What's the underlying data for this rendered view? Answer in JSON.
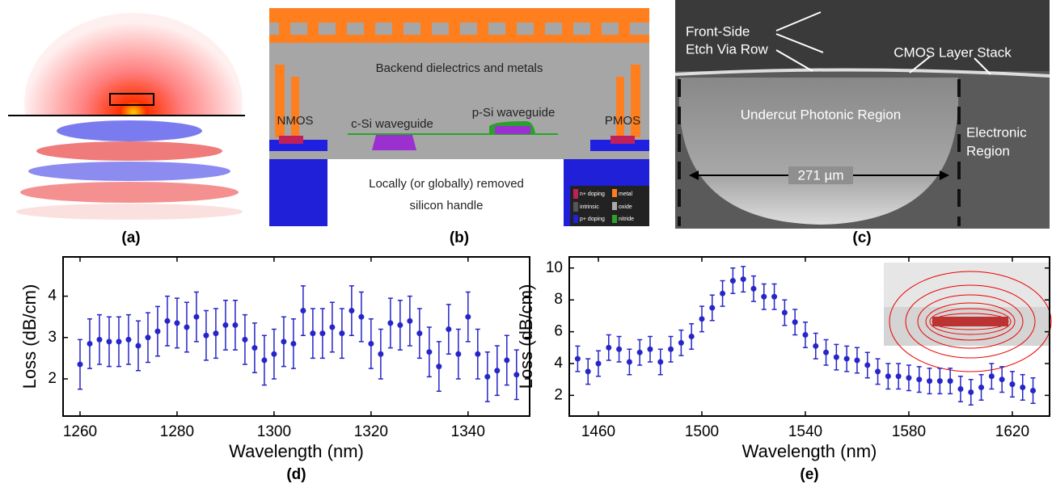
{
  "panels": {
    "a": {
      "label": "(a)"
    },
    "b": {
      "label": "(b)",
      "backend": "Backend dielectrics and metals",
      "nmos": "NMOS",
      "pmos": "PMOS",
      "csi": "c-Si waveguide",
      "psi": "p-Si waveguide",
      "handle": [
        "Locally (or globally) removed",
        "silicon handle"
      ],
      "legend": [
        "n+ doping",
        "intrinsic",
        "p+ doping",
        "metal",
        "oxide",
        "nitride"
      ]
    },
    "c": {
      "label": "(c)",
      "via": [
        "Front-Side",
        "Etch Via Row"
      ],
      "stack": "CMOS Layer Stack",
      "undercut": "Undercut Photonic Region",
      "electronic": [
        "Electronic",
        "Region"
      ],
      "width": "271 µm"
    }
  },
  "chart_data": [
    {
      "type": "errorbar",
      "panel_label": "(d)",
      "x_label": "Wavelength (nm)",
      "y_label": "Loss (dB/cm)",
      "color": "#2626c8",
      "x": [
        1260,
        1262,
        1264,
        1266,
        1268,
        1270,
        1272,
        1274,
        1276,
        1278,
        1280,
        1282,
        1284,
        1286,
        1288,
        1290,
        1292,
        1294,
        1296,
        1298,
        1300,
        1302,
        1304,
        1306,
        1308,
        1310,
        1312,
        1314,
        1316,
        1318,
        1320,
        1322,
        1324,
        1326,
        1328,
        1330,
        1332,
        1334,
        1336,
        1338,
        1340,
        1342,
        1344,
        1346,
        1348,
        1350
      ],
      "values": [
        2.35,
        2.85,
        2.95,
        2.9,
        2.9,
        2.95,
        2.8,
        3.0,
        3.15,
        3.4,
        3.35,
        3.25,
        3.5,
        3.05,
        3.1,
        3.3,
        3.3,
        2.95,
        2.75,
        2.45,
        2.6,
        2.9,
        2.85,
        3.65,
        3.1,
        3.1,
        3.25,
        3.1,
        3.65,
        3.5,
        2.85,
        2.6,
        3.35,
        3.3,
        3.4,
        3.1,
        2.65,
        2.3,
        3.2,
        2.6,
        3.5,
        2.6,
        2.05,
        2.2,
        2.45,
        2.1
      ],
      "error": 0.6,
      "xlim": [
        1256.5,
        1352.7
      ],
      "ylim": [
        1.1,
        4.95
      ],
      "xticks": [
        1260,
        1280,
        1300,
        1320,
        1340
      ],
      "yticks": [
        2,
        3,
        4
      ]
    },
    {
      "type": "errorbar",
      "panel_label": "(e)",
      "x_label": "Wavelength (nm)",
      "y_label": "Loss (dB/cm)",
      "color": "#2626c8",
      "x": [
        1452,
        1456,
        1460,
        1464,
        1468,
        1472,
        1476,
        1480,
        1484,
        1488,
        1492,
        1496,
        1500,
        1504,
        1508,
        1512,
        1516,
        1520,
        1524,
        1528,
        1532,
        1536,
        1540,
        1544,
        1548,
        1552,
        1556,
        1560,
        1564,
        1568,
        1572,
        1576,
        1580,
        1584,
        1588,
        1592,
        1596,
        1600,
        1604,
        1608,
        1612,
        1616,
        1620,
        1624,
        1628
      ],
      "values": [
        4.3,
        3.5,
        4.0,
        5.0,
        4.9,
        4.1,
        4.7,
        4.9,
        4.1,
        4.9,
        5.3,
        5.7,
        6.8,
        7.5,
        8.4,
        9.2,
        9.3,
        8.7,
        8.2,
        8.2,
        7.2,
        6.6,
        5.8,
        5.1,
        4.7,
        4.4,
        4.3,
        4.2,
        3.9,
        3.5,
        3.2,
        3.2,
        3.1,
        3.0,
        2.9,
        2.9,
        2.9,
        2.4,
        2.2,
        2.5,
        3.2,
        3.0,
        2.7,
        2.5,
        2.3
      ],
      "error": 0.8,
      "xlim": [
        1448.75,
        1634.4
      ],
      "ylim": [
        0.7,
        10.7
      ],
      "xticks": [
        1460,
        1500,
        1540,
        1580,
        1620
      ],
      "yticks": [
        2,
        4,
        6,
        8,
        10
      ]
    }
  ]
}
